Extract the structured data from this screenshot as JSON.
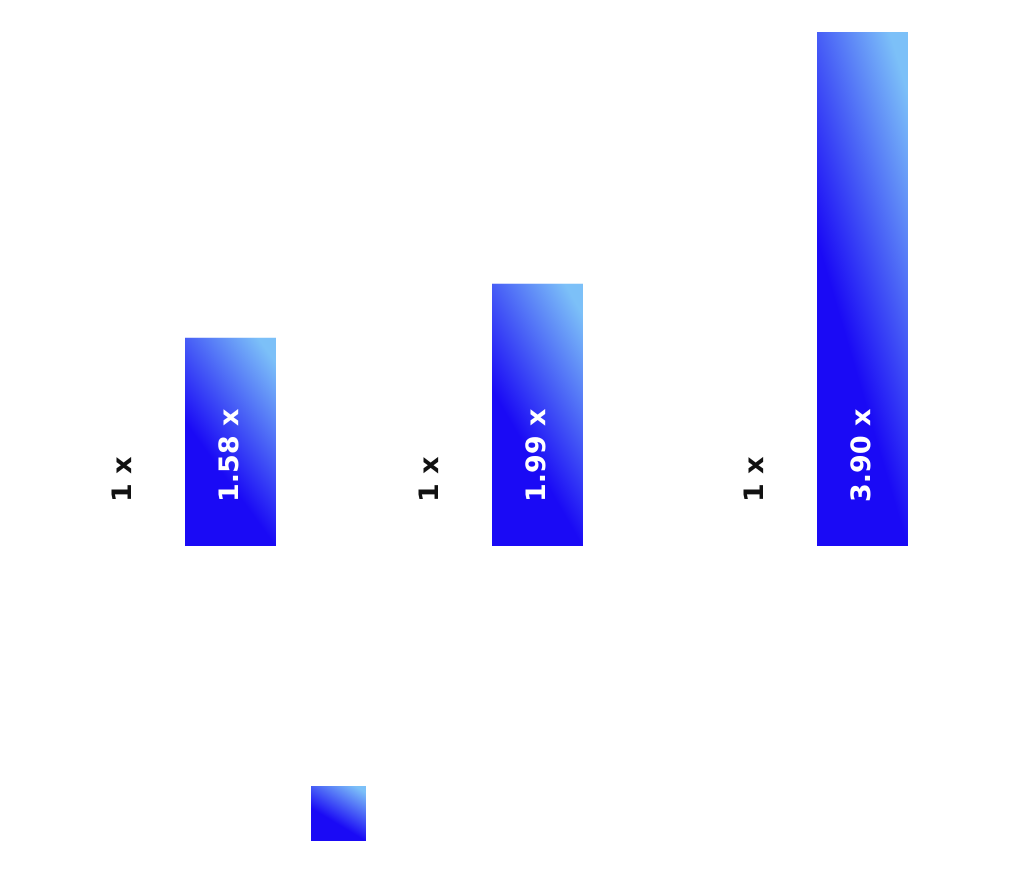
{
  "chart_data": {
    "type": "bar",
    "series": [
      {
        "color": "#ffffff",
        "text_color": "#111111",
        "values": [
          1,
          1,
          1
        ],
        "value_labels": [
          "1 x",
          "1 x",
          "1 x"
        ]
      },
      {
        "color": [
          "#1a0af5",
          "#7cc0f8"
        ],
        "text_color": "#ffffff",
        "values": [
          1.58,
          1.99,
          3.9
        ],
        "value_labels": [
          "1.58 x",
          "1.99 x",
          "3.90 x"
        ]
      }
    ],
    "ylim": [
      0,
      3.9
    ]
  }
}
